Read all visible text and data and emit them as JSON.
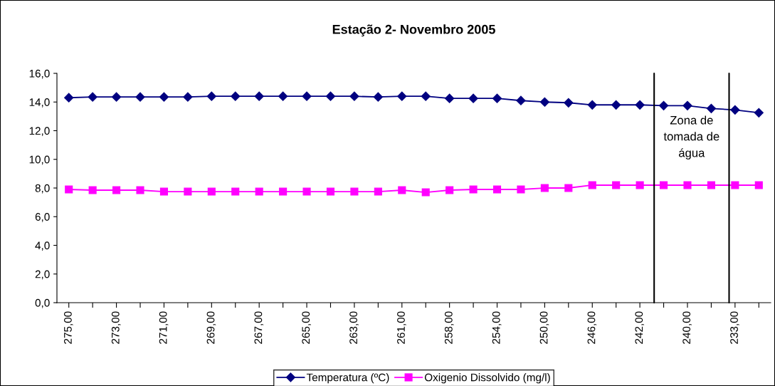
{
  "chart_data": {
    "type": "line",
    "title": "Estação 2- Novembro 2005",
    "categories": [
      "275,00",
      null,
      "273,00",
      null,
      "271,00",
      null,
      "269,00",
      null,
      "267,00",
      null,
      "265,00",
      null,
      "263,00",
      null,
      "261,00",
      null,
      "258,00",
      null,
      "254,00",
      null,
      "250,00",
      null,
      "246,00",
      null,
      "242,00",
      null,
      "240,00",
      null,
      "233,00",
      null
    ],
    "series": [
      {
        "name": "Temperatura (ºC)",
        "color": "#000080",
        "marker": "diamond",
        "values": [
          14.3,
          14.35,
          14.35,
          14.35,
          14.35,
          14.35,
          14.4,
          14.4,
          14.4,
          14.4,
          14.4,
          14.4,
          14.4,
          14.35,
          14.4,
          14.4,
          14.25,
          14.25,
          14.25,
          14.1,
          14.0,
          13.95,
          13.8,
          13.8,
          13.8,
          13.75,
          13.75,
          13.55,
          13.45,
          13.25
        ]
      },
      {
        "name": "Oxigenio Dissolvido (mg/l)",
        "color": "#ff00ff",
        "marker": "square",
        "values": [
          7.9,
          7.85,
          7.85,
          7.85,
          7.75,
          7.75,
          7.75,
          7.75,
          7.75,
          7.75,
          7.75,
          7.75,
          7.75,
          7.75,
          7.85,
          7.7,
          7.85,
          7.9,
          7.9,
          7.9,
          8.0,
          8.0,
          8.2,
          8.2,
          8.2,
          8.2,
          8.2,
          8.2,
          8.2,
          8.2
        ]
      }
    ],
    "ylim": [
      0,
      16
    ],
    "yticks": [
      {
        "value": 0,
        "label": "0,0"
      },
      {
        "value": 2,
        "label": "2,0"
      },
      {
        "value": 4,
        "label": "4,0"
      },
      {
        "value": 6,
        "label": "6,0"
      },
      {
        "value": 8,
        "label": "8,0"
      },
      {
        "value": 10,
        "label": "10,0"
      },
      {
        "value": 12,
        "label": "12,0"
      },
      {
        "value": 14,
        "label": "14,0"
      },
      {
        "value": 16,
        "label": "16,0"
      }
    ],
    "annotations": [
      "Zona de\ntomada de\nágua"
    ],
    "grid": false,
    "legend": "bottom",
    "line_style": "solid"
  }
}
